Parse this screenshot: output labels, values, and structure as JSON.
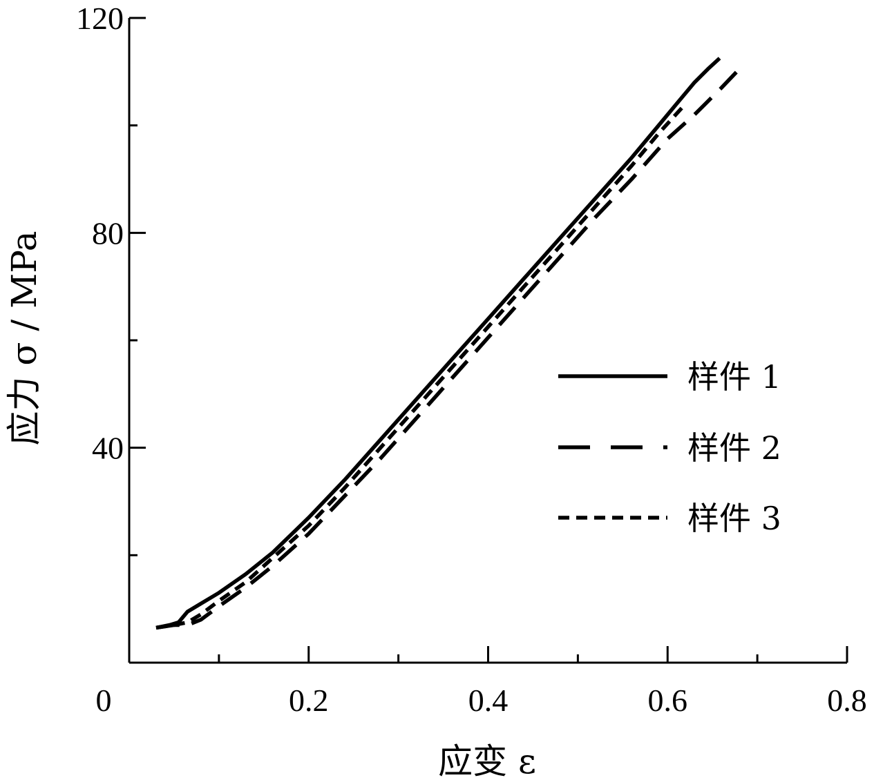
{
  "chart_data": {
    "type": "line",
    "title": "",
    "xlabel": "应变 ε",
    "ylabel": "应力 σ / MPa",
    "xlim": [
      0,
      0.8
    ],
    "ylim": [
      0,
      120
    ],
    "x_ticks": [
      0,
      0.2,
      0.4,
      0.6,
      0.8
    ],
    "x_tick_labels": [
      "0",
      "0.2",
      "0.4",
      "0.6",
      "0.8"
    ],
    "x_minor_ticks": [
      0.1,
      0.3,
      0.5,
      0.7
    ],
    "y_ticks": [
      40,
      80,
      120
    ],
    "y_tick_labels": [
      "40",
      "80",
      "120"
    ],
    "y_minor_ticks": [
      20,
      60,
      100
    ],
    "grid": false,
    "legend_position": "right",
    "series": [
      {
        "name": "样件 1",
        "line_style": "solid",
        "color": "#000000",
        "x": [
          0.03,
          0.045,
          0.055,
          0.065,
          0.08,
          0.1,
          0.13,
          0.16,
          0.2,
          0.24,
          0.28,
          0.32,
          0.36,
          0.4,
          0.44,
          0.48,
          0.52,
          0.56,
          0.59,
          0.61,
          0.63,
          0.645,
          0.658
        ],
        "y": [
          6.5,
          7.0,
          7.5,
          9.5,
          11.0,
          13.0,
          16.5,
          20.5,
          27.0,
          34.0,
          41.5,
          49.0,
          56.5,
          64.0,
          71.5,
          79.0,
          86.5,
          94.0,
          100.0,
          104.0,
          108.0,
          110.5,
          112.5
        ]
      },
      {
        "name": "样件 2",
        "line_style": "long-dash",
        "color": "#000000",
        "x": [
          0.03,
          0.05,
          0.065,
          0.08,
          0.1,
          0.13,
          0.16,
          0.2,
          0.24,
          0.28,
          0.32,
          0.36,
          0.4,
          0.44,
          0.48,
          0.52,
          0.56,
          0.6,
          0.63,
          0.66,
          0.68
        ],
        "y": [
          6.5,
          7.0,
          7.0,
          8.0,
          10.5,
          14.0,
          18.0,
          24.0,
          31.0,
          38.0,
          45.5,
          53.0,
          60.5,
          68.0,
          75.5,
          83.0,
          90.0,
          97.5,
          102.0,
          107.0,
          110.5
        ]
      },
      {
        "name": "样件 3",
        "line_style": "short-dash",
        "color": "#000000",
        "x": [
          0.03,
          0.05,
          0.065,
          0.08,
          0.1,
          0.13,
          0.16,
          0.2,
          0.24,
          0.28,
          0.32,
          0.36,
          0.4,
          0.44,
          0.48,
          0.52,
          0.56,
          0.59,
          0.62
        ],
        "y": [
          6.5,
          7.0,
          7.5,
          9.0,
          11.5,
          15.0,
          19.5,
          25.5,
          32.5,
          40.0,
          47.5,
          55.0,
          62.5,
          70.0,
          77.5,
          85.0,
          92.5,
          98.5,
          104.0
        ]
      }
    ]
  }
}
